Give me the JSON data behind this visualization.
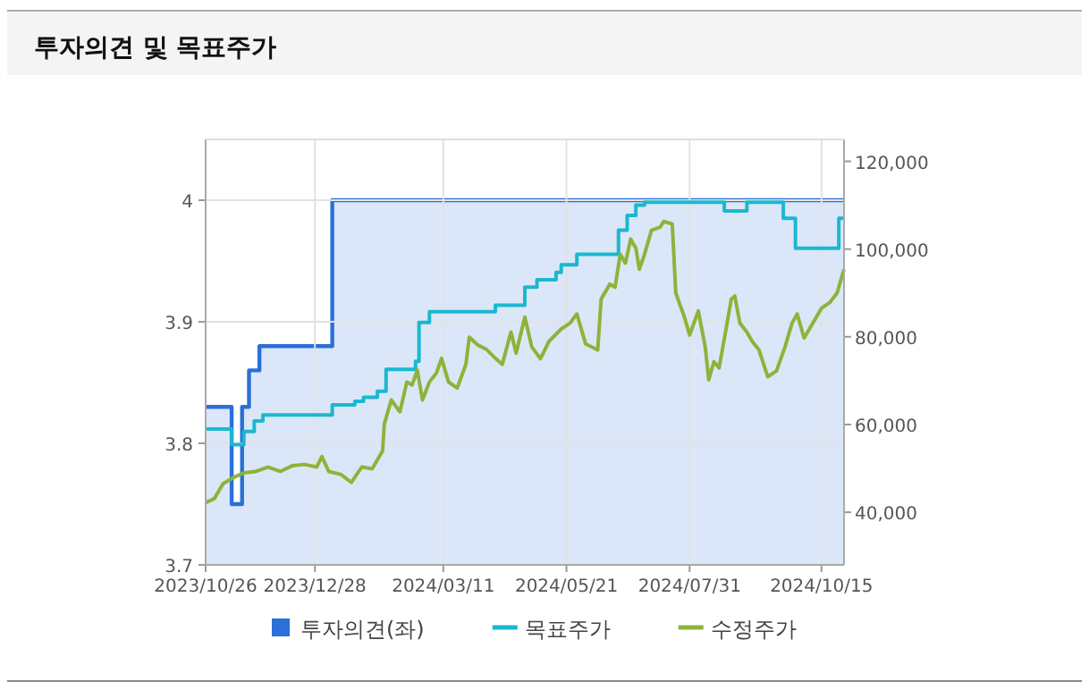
{
  "chart_data": {
    "type": "line",
    "title": "투자의견 및 목표주가",
    "xlim": [
      "2023-10-26",
      "2024-10-28"
    ],
    "xticks": [
      {
        "value": "2023-10-26",
        "label": "2023/10/26"
      },
      {
        "value": "2023-12-28",
        "label": "2023/12/28"
      },
      {
        "value": "2024-03-11",
        "label": "2024/03/11"
      },
      {
        "value": "2024-05-21",
        "label": "2024/05/21"
      },
      {
        "value": "2024-07-31",
        "label": "2024/07/31"
      },
      {
        "value": "2024-10-15",
        "label": "2024/10/15"
      }
    ],
    "ylim": [
      3.7,
      4.05
    ],
    "yticks": [
      3.7,
      3.8,
      3.9,
      4
    ],
    "y2lim": [
      28000,
      125000
    ],
    "y2ticks": [
      {
        "value": 40000,
        "label": "40,000"
      },
      {
        "value": 60000,
        "label": "60,000"
      },
      {
        "value": 80000,
        "label": "80,000"
      },
      {
        "value": 100000,
        "label": "100,000"
      },
      {
        "value": 120000,
        "label": "120,000"
      }
    ],
    "grid": true,
    "legend": "bottom",
    "series": [
      {
        "name": "투자의견(좌)",
        "type": "area",
        "color": "#2b6fd8",
        "x": [
          "2023-10-26",
          "2023-11-10",
          "2023-11-10",
          "2023-11-16",
          "2023-11-16",
          "2023-11-20",
          "2023-11-20",
          "2023-11-26",
          "2023-11-26",
          "2024-01-07",
          "2024-01-07",
          "2024-10-28"
        ],
        "values": [
          3.83,
          3.83,
          3.75,
          3.75,
          3.83,
          3.83,
          3.86,
          3.86,
          3.88,
          3.88,
          4.0,
          4.0
        ]
      },
      {
        "name": "목표주가",
        "type": "step",
        "axis": "y2",
        "color": "#1ab8d0",
        "x": [
          "2023-10-26",
          "2023-11-10",
          "2023-11-17",
          "2023-11-23",
          "2023-11-28",
          "2024-01-07",
          "2024-01-20",
          "2024-01-25",
          "2024-02-02",
          "2024-02-07",
          "2024-02-24",
          "2024-02-26",
          "2024-03-03",
          "2024-04-10",
          "2024-04-27",
          "2024-05-04",
          "2024-05-15",
          "2024-05-18",
          "2024-05-27",
          "2024-06-20",
          "2024-06-25",
          "2024-06-30",
          "2024-07-05",
          "2024-08-20",
          "2024-09-02",
          "2024-09-23",
          "2024-09-30",
          "2024-10-25",
          "2024-10-28"
        ],
        "values": [
          59000,
          55400,
          58400,
          60800,
          62200,
          64500,
          65300,
          66200,
          67600,
          72600,
          74400,
          83300,
          85700,
          87200,
          91300,
          93000,
          94700,
          96400,
          98800,
          104300,
          107700,
          110000,
          110700,
          108700,
          110700,
          107000,
          100200,
          107000,
          107000
        ]
      },
      {
        "name": "수정주가",
        "type": "line",
        "axis": "y2",
        "color": "#8db33a",
        "x": [
          "2023-10-26",
          "2023-10-31",
          "2023-11-05",
          "2023-11-11",
          "2023-11-17",
          "2023-11-24",
          "2023-12-01",
          "2023-12-08",
          "2023-12-15",
          "2023-12-22",
          "2023-12-29",
          "2024-01-01",
          "2024-01-05",
          "2024-01-12",
          "2024-01-18",
          "2024-01-24",
          "2024-01-30",
          "2024-02-05",
          "2024-02-06",
          "2024-02-10",
          "2024-02-15",
          "2024-02-19",
          "2024-02-22",
          "2024-02-25",
          "2024-02-28",
          "2024-03-03",
          "2024-03-07",
          "2024-03-10",
          "2024-03-14",
          "2024-03-19",
          "2024-03-24",
          "2024-03-26",
          "2024-03-31",
          "2024-04-05",
          "2024-04-10",
          "2024-04-14",
          "2024-04-19",
          "2024-04-22",
          "2024-04-27",
          "2024-05-01",
          "2024-05-06",
          "2024-05-11",
          "2024-05-18",
          "2024-05-23",
          "2024-05-27",
          "2024-06-01",
          "2024-06-08",
          "2024-06-10",
          "2024-06-15",
          "2024-06-18",
          "2024-06-21",
          "2024-06-24",
          "2024-06-27",
          "2024-06-30",
          "2024-07-02",
          "2024-07-05",
          "2024-07-09",
          "2024-07-14",
          "2024-07-16",
          "2024-07-21",
          "2024-07-23",
          "2024-07-28",
          "2024-07-31",
          "2024-08-05",
          "2024-08-09",
          "2024-08-11",
          "2024-08-14",
          "2024-08-17",
          "2024-08-21",
          "2024-08-24",
          "2024-08-26",
          "2024-08-29",
          "2024-09-02",
          "2024-09-05",
          "2024-09-09",
          "2024-09-14",
          "2024-09-19",
          "2024-09-24",
          "2024-09-28",
          "2024-10-01",
          "2024-10-05",
          "2024-10-10",
          "2024-10-15",
          "2024-10-20",
          "2024-10-24",
          "2024-10-28"
        ],
        "values": [
          42200,
          43100,
          46500,
          47900,
          49000,
          49300,
          50300,
          49300,
          50600,
          50900,
          50300,
          52700,
          49300,
          48600,
          46800,
          50300,
          49900,
          54000,
          60100,
          65600,
          62900,
          69700,
          69000,
          72400,
          65600,
          69700,
          71700,
          75100,
          69700,
          68300,
          73700,
          79900,
          78100,
          77100,
          75100,
          73700,
          81100,
          76300,
          84500,
          77700,
          75000,
          79000,
          81800,
          83100,
          85200,
          78400,
          77000,
          88600,
          92000,
          91300,
          98800,
          96800,
          102300,
          100200,
          95400,
          98800,
          104300,
          105000,
          106300,
          105700,
          90000,
          84500,
          80400,
          85900,
          77700,
          70200,
          74300,
          72900,
          81800,
          88600,
          89300,
          83100,
          81100,
          79000,
          77000,
          70900,
          72200,
          77700,
          83100,
          85200,
          79700,
          83100,
          86500,
          87900,
          90000,
          95400
        ]
      }
    ]
  }
}
